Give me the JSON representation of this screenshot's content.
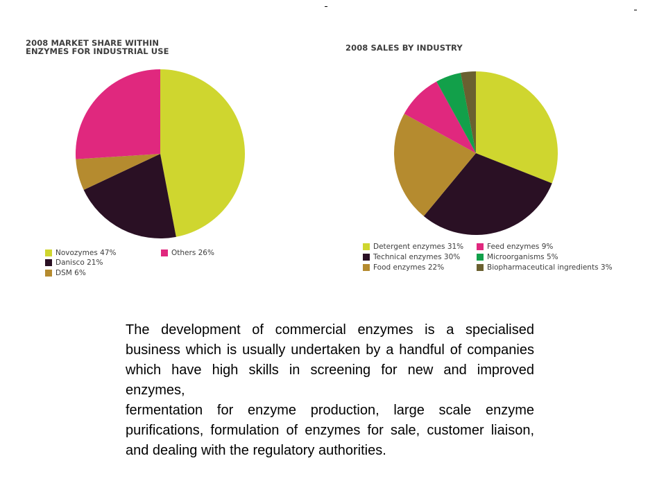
{
  "chart_data": [
    {
      "type": "pie",
      "title": "2008 MARKET SHARE WITHIN ENZYMES FOR INDUSTRIAL USE",
      "title_lines": [
        "2008 MARKET SHARE WITHIN",
        "ENZYMES FOR INDUSTRIAL USE"
      ],
      "slices": [
        {
          "name": "Novozymes",
          "value": 47,
          "color": "#cfd62f",
          "legend": "Novozymes 47%"
        },
        {
          "name": "Danisco",
          "value": 21,
          "color": "#2a1024",
          "legend": "Danisco 21%"
        },
        {
          "name": "DSM",
          "value": 6,
          "color": "#b58b2f",
          "legend": "DSM 6%"
        },
        {
          "name": "Others",
          "value": 26,
          "color": "#e0287e",
          "legend": "Others 26%"
        }
      ]
    },
    {
      "type": "pie",
      "title": "2008 SALES BY INDUSTRY",
      "title_lines": [
        "2008 SALES BY INDUSTRY"
      ],
      "slices": [
        {
          "name": "Detergent enzymes",
          "value": 31,
          "color": "#cfd62f",
          "legend": "Detergent enzymes 31%"
        },
        {
          "name": "Technical enzymes",
          "value": 30,
          "color": "#2a1024",
          "legend": "Technical enzymes 30%"
        },
        {
          "name": "Food enzymes",
          "value": 22,
          "color": "#b58b2f",
          "legend": "Food enzymes 22%"
        },
        {
          "name": "Feed enzymes",
          "value": 9,
          "color": "#e0287e",
          "legend": "Feed enzymes 9%"
        },
        {
          "name": "Microorganisms",
          "value": 5,
          "color": "#12a04a",
          "legend": "Microorganisms 5%"
        },
        {
          "name": "Biopharmaceutical ingredients",
          "value": 3,
          "color": "#6a6030",
          "legend": "Biopharmaceutical ingredients 3%"
        }
      ]
    }
  ],
  "text": {
    "paragraph1": "The development of commercial enzymes is a specialised business which is usually undertaken by a handful of companies which have high skills in screening for new and improved enzymes,",
    "paragraph2": "fermentation for enzyme production, large scale enzyme purifications, formulation of enzymes for sale, customer liaison, and dealing with the regulatory authorities."
  }
}
